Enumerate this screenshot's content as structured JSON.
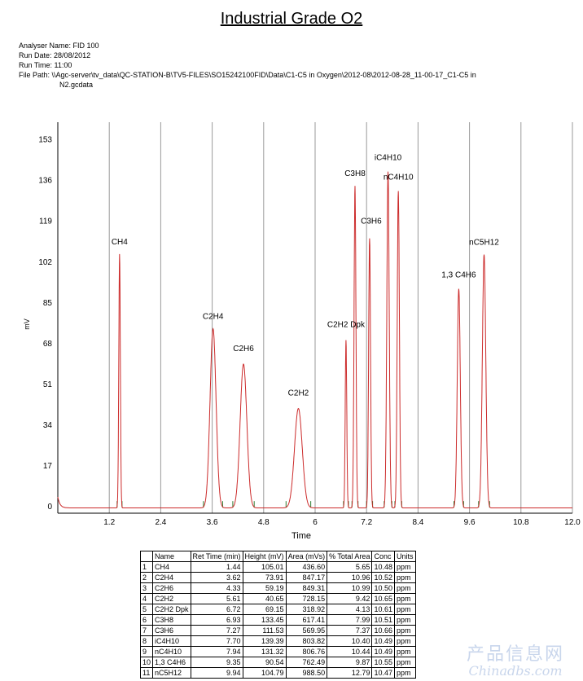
{
  "report": {
    "title": "Industrial Grade O2",
    "analyser_label": "Analyser Name:",
    "analyser_value": "FID 100",
    "run_date_label": "Run Date:",
    "run_date_value": "28/08/2012",
    "run_time_label": "Run Time:",
    "run_time_value": "11:00",
    "file_path_label": "File Path:",
    "file_path_value": "\\\\Agc-server\\tv_data\\QC-STATION-B\\TV5-FILES\\SO15242100FID\\Data\\C1-C5  in  Oxygen\\2012-08\\2012-08-28_11-00-17_C1-C5  in",
    "file_path_cont": "N2.gcdata"
  },
  "chart_data": {
    "type": "line",
    "title": "",
    "xlabel": "Time",
    "ylabel": "mV",
    "xlim": [
      0,
      12
    ],
    "ylim": [
      -3,
      160
    ],
    "x_ticks": [
      1.2,
      2.4,
      3.6,
      4.8,
      6,
      7.2,
      8.4,
      9.6,
      10.8,
      12
    ],
    "x_tick_labels": [
      "1.2",
      "2.4",
      "3.6",
      "4.8",
      "6",
      "7.2",
      "8.4",
      "9.6",
      "10.8",
      "12.0"
    ],
    "y_ticks": [
      0,
      17,
      34,
      51,
      68,
      85,
      102,
      119,
      136,
      153
    ],
    "y_tick_labels": [
      "0",
      "17",
      "34",
      "51",
      "68",
      "85",
      "102",
      "119",
      "136",
      "153"
    ],
    "grid": "vertical",
    "line_color": "#cc2b2b",
    "marker_color": "#2e7d32",
    "peaks": [
      {
        "label": "CH4",
        "x": 1.44,
        "y": 105.01
      },
      {
        "label": "C2H4",
        "x": 3.62,
        "y": 73.91
      },
      {
        "label": "C2H6",
        "x": 4.33,
        "y": 59.19
      },
      {
        "label": "C2H2",
        "x": 5.61,
        "y": 40.65
      },
      {
        "label": "C2H2 Dpk",
        "x": 6.72,
        "y": 69.15
      },
      {
        "label": "C3H8",
        "x": 6.93,
        "y": 133.45
      },
      {
        "label": "C3H6",
        "x": 7.27,
        "y": 111.53
      },
      {
        "label": "iC4H10",
        "x": 7.7,
        "y": 139.39
      },
      {
        "label": "nC4H10",
        "x": 7.94,
        "y": 131.32
      },
      {
        "label": "1,3 C4H6",
        "x": 9.35,
        "y": 90.54
      },
      {
        "label": "nC5H12",
        "x": 9.94,
        "y": 104.79
      }
    ]
  },
  "table": {
    "headers": [
      "",
      "Name",
      "Ret Time (min)",
      "Height (mV)",
      "Area (mVs)",
      "% Total Area",
      "Conc",
      "Units"
    ],
    "rows": [
      [
        "1",
        "CH4",
        "1.44",
        "105.01",
        "436.60",
        "5.65",
        "10.48",
        "ppm"
      ],
      [
        "2",
        "C2H4",
        "3.62",
        "73.91",
        "847.17",
        "10.96",
        "10.52",
        "ppm"
      ],
      [
        "3",
        "C2H6",
        "4.33",
        "59.19",
        "849.31",
        "10.99",
        "10.50",
        "ppm"
      ],
      [
        "4",
        "C2H2",
        "5.61",
        "40.65",
        "728.15",
        "9.42",
        "10.65",
        "ppm"
      ],
      [
        "5",
        "C2H2 Dpk",
        "6.72",
        "69.15",
        "318.92",
        "4.13",
        "10.61",
        "ppm"
      ],
      [
        "6",
        "C3H8",
        "6.93",
        "133.45",
        "617.41",
        "7.99",
        "10.51",
        "ppm"
      ],
      [
        "7",
        "C3H6",
        "7.27",
        "111.53",
        "569.95",
        "7.37",
        "10.66",
        "ppm"
      ],
      [
        "8",
        "iC4H10",
        "7.70",
        "139.39",
        "803.82",
        "10.40",
        "10.49",
        "ppm"
      ],
      [
        "9",
        "nC4H10",
        "7.94",
        "131.32",
        "806.76",
        "10.44",
        "10.49",
        "ppm"
      ],
      [
        "10",
        "1,3 C4H6",
        "9.35",
        "90.54",
        "762.49",
        "9.87",
        "10.55",
        "ppm"
      ],
      [
        "11",
        "nC5H12",
        "9.94",
        "104.79",
        "988.50",
        "12.79",
        "10.47",
        "ppm"
      ]
    ]
  },
  "watermark": {
    "cn": "产品信息网",
    "en": "Chinadbs.com"
  }
}
